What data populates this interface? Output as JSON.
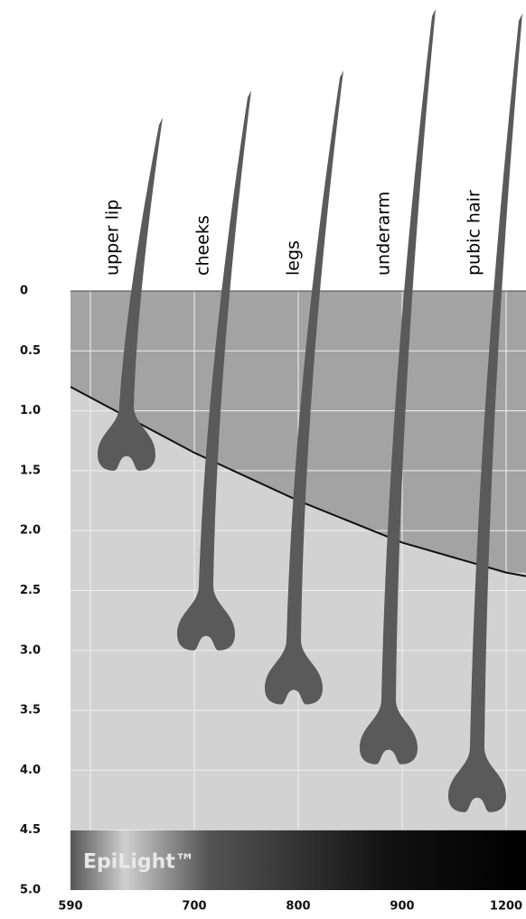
{
  "chart_data": {
    "type": "line",
    "categories": [
      "590",
      "700",
      "800",
      "900",
      "1200"
    ],
    "values": [
      0.8,
      1.35,
      1.75,
      2.1,
      2.35
    ],
    "color": "#111111",
    "ylim": [
      0,
      5
    ],
    "y_inverted": true,
    "yticks": [
      0,
      0.5,
      {
        "value": 1,
        "label": "1.0"
      },
      1.5,
      {
        "value": 2,
        "label": "2.0"
      },
      2.5,
      {
        "value": 3,
        "label": "3.0"
      },
      3.5,
      {
        "value": 4,
        "label": "4.0"
      },
      4.5,
      {
        "value": 5,
        "label": "5.0"
      }
    ],
    "grid": true,
    "hairs": {
      "labels": [
        "upper lip",
        "cheeks",
        "legs",
        "underarm",
        "pubic hair"
      ],
      "depths": [
        1.5,
        3.0,
        3.45,
        3.95,
        4.35
      ],
      "color": "#5a5a5a"
    },
    "annotation": "EpiLight™"
  }
}
